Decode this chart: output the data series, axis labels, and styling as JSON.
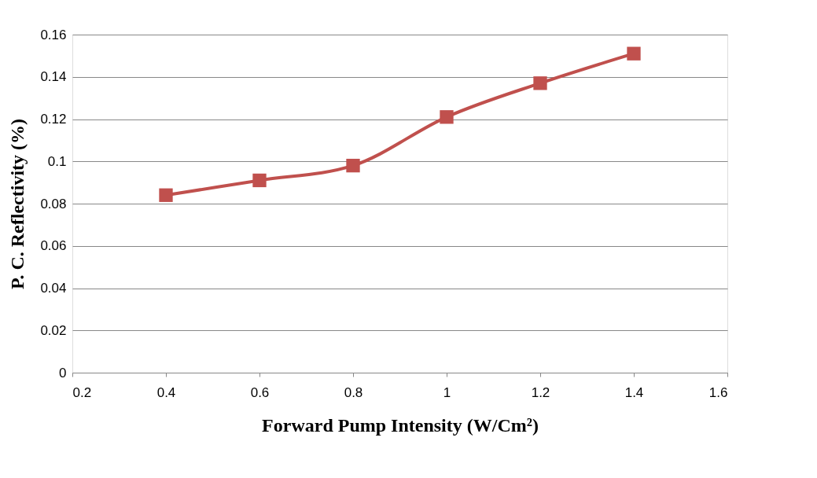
{
  "chart_data": {
    "type": "line",
    "xlabel": "Forward Pump Intensity (W/Cm²)",
    "ylabel": "P. C. Reflectivity (%)",
    "x": [
      0.4,
      0.6,
      0.8,
      1.0,
      1.2,
      1.4
    ],
    "series": [
      {
        "color": "#c0504d",
        "values": [
          0.084,
          0.091,
          0.098,
          0.121,
          0.137,
          0.151
        ]
      }
    ],
    "xlim": [
      0.2,
      1.6
    ],
    "xticks": [
      0.2,
      0.4,
      0.6,
      0.8,
      1,
      1.2,
      1.4,
      1.6
    ],
    "ylim": [
      0,
      0.16
    ],
    "yticks": [
      0,
      0.02,
      0.04,
      0.06,
      0.08,
      0.1,
      0.12,
      0.14,
      0.16
    ],
    "grid": "y",
    "marker": "square",
    "line_style": "solid"
  }
}
